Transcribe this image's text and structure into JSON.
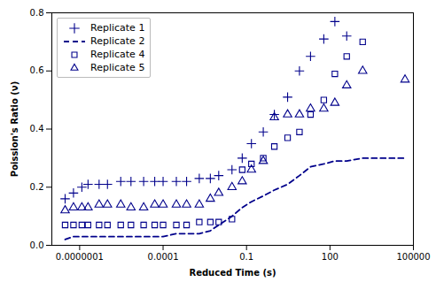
{
  "chart_data": {
    "type": "scatter",
    "title": "",
    "xlabel": "Reduced Time (s)",
    "ylabel": "Poission's Ratio (ν)",
    "log": "x",
    "xlim": [
      1e-08,
      100000.0
    ],
    "ylim": [
      0.0,
      0.8
    ],
    "xticks": [
      {
        "value": 1e-07,
        "label": "0.0000001"
      },
      0.0001,
      0.1,
      100,
      100000
    ],
    "yticks": [
      {
        "value": 0.0,
        "label": "0.0"
      },
      0.2,
      0.4,
      0.6,
      0.8
    ],
    "color": "#00008B",
    "grid": false,
    "legend": "upper left",
    "series": [
      {
        "name": "Replicate 1",
        "type": "scatter",
        "marker": "plus",
        "x": [
          3e-08,
          6e-08,
          1.2e-07,
          2e-07,
          5e-07,
          1e-06,
          3e-06,
          7e-06,
          2e-05,
          5e-05,
          0.0001,
          0.0003,
          0.0007,
          0.002,
          0.005,
          0.01,
          0.03,
          0.07,
          0.15,
          0.4,
          1,
          3,
          8,
          20,
          60,
          150,
          400
        ],
        "values": [
          0.16,
          0.18,
          0.2,
          0.21,
          0.21,
          0.21,
          0.22,
          0.22,
          0.22,
          0.22,
          0.22,
          0.22,
          0.22,
          0.23,
          0.23,
          0.24,
          0.26,
          0.3,
          0.35,
          0.39,
          0.45,
          0.51,
          0.6,
          0.65,
          0.71,
          0.77,
          0.72
        ]
      },
      {
        "name": "Replicate 2",
        "type": "line",
        "line_style": "dashed",
        "x": [
          3e-08,
          6e-08,
          1.2e-07,
          2e-07,
          5e-07,
          1e-06,
          3e-06,
          7e-06,
          2e-05,
          5e-05,
          0.0001,
          0.0003,
          0.0007,
          0.002,
          0.005,
          0.01,
          0.03,
          0.07,
          0.15,
          0.4,
          1,
          3,
          8,
          20,
          60,
          150,
          400,
          1500,
          50000
        ],
        "values": [
          0.02,
          0.03,
          0.03,
          0.03,
          0.03,
          0.03,
          0.03,
          0.03,
          0.03,
          0.03,
          0.03,
          0.04,
          0.04,
          0.04,
          0.05,
          0.07,
          0.1,
          0.13,
          0.15,
          0.17,
          0.19,
          0.21,
          0.24,
          0.27,
          0.28,
          0.29,
          0.29,
          0.3,
          0.3
        ]
      },
      {
        "name": "Replicate 4",
        "type": "scatter",
        "marker": "square",
        "x": [
          3e-08,
          6e-08,
          1.2e-07,
          2e-07,
          5e-07,
          1e-06,
          3e-06,
          7e-06,
          2e-05,
          5e-05,
          0.0001,
          0.0003,
          0.0007,
          0.002,
          0.005,
          0.01,
          0.03,
          0.07,
          0.15,
          0.4,
          1,
          3,
          8,
          20,
          60,
          150,
          400,
          1500
        ],
        "values": [
          0.07,
          0.07,
          0.07,
          0.07,
          0.07,
          0.07,
          0.07,
          0.07,
          0.07,
          0.07,
          0.07,
          0.07,
          0.07,
          0.08,
          0.08,
          0.08,
          0.09,
          0.26,
          0.28,
          0.3,
          0.34,
          0.37,
          0.39,
          0.45,
          0.5,
          0.59,
          0.65,
          0.7
        ]
      },
      {
        "name": "Replicate 5",
        "type": "scatter",
        "marker": "triangle",
        "x": [
          3e-08,
          6e-08,
          1.2e-07,
          2e-07,
          5e-07,
          1e-06,
          3e-06,
          7e-06,
          2e-05,
          5e-05,
          0.0001,
          0.0003,
          0.0007,
          0.002,
          0.005,
          0.01,
          0.03,
          0.07,
          0.15,
          0.4,
          1,
          3,
          8,
          20,
          60,
          150,
          400,
          1500,
          50000
        ],
        "values": [
          0.12,
          0.13,
          0.13,
          0.13,
          0.14,
          0.14,
          0.14,
          0.13,
          0.13,
          0.14,
          0.14,
          0.14,
          0.14,
          0.14,
          0.16,
          0.18,
          0.2,
          0.22,
          0.26,
          0.29,
          0.44,
          0.45,
          0.45,
          0.47,
          0.47,
          0.49,
          0.55,
          0.6,
          0.57
        ]
      }
    ]
  }
}
